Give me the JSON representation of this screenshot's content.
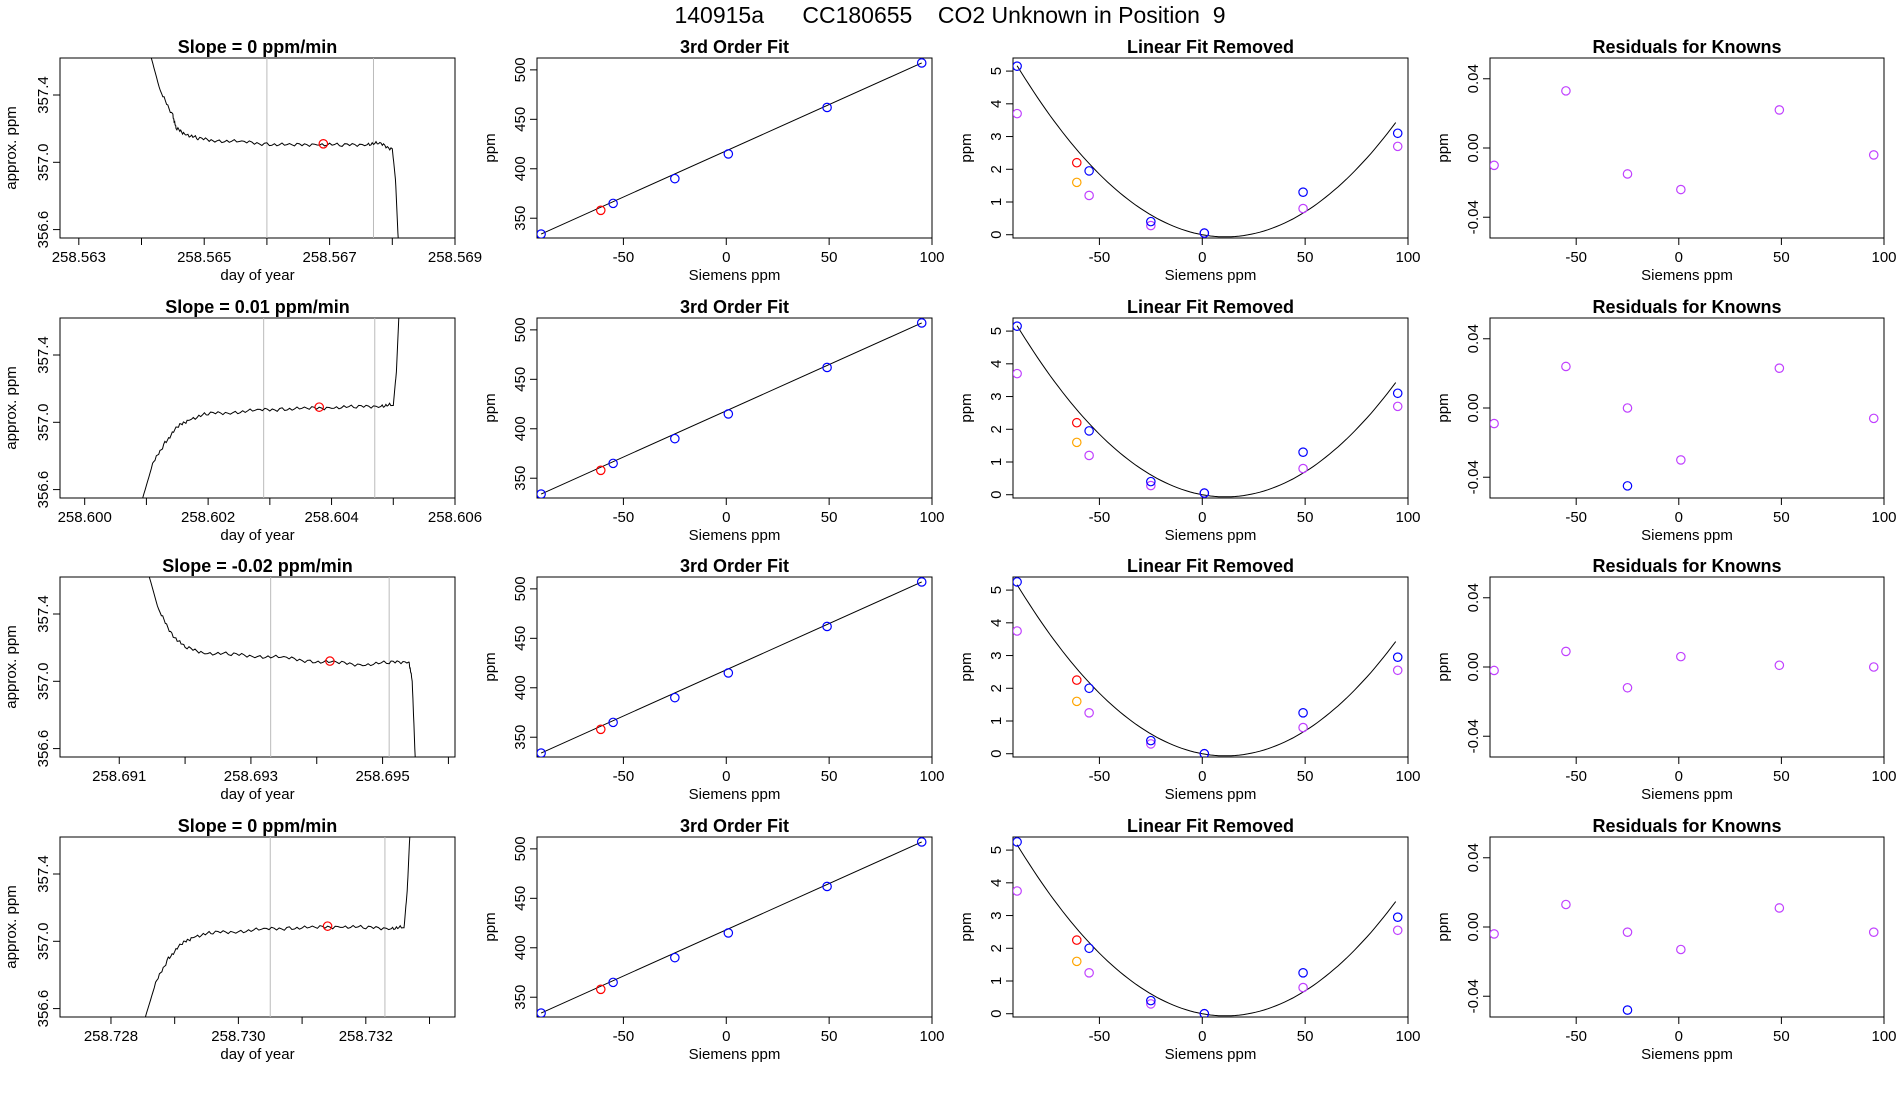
{
  "figure": {
    "title": "140915a      CC180655    CO2 Unknown in Position  9"
  },
  "colors": {
    "known": "#0000ff",
    "residual": "#c040ff",
    "unknown": "#ff0000",
    "unknown_lin": "#ffa500",
    "line": "#000000",
    "gridline": "#bbbbbb"
  },
  "chart_data": [
    {
      "row": 0,
      "panel": "trace",
      "type": "line",
      "title": "Slope =  0  ppm/min",
      "xlabel": "day of year",
      "ylabel": "approx. ppm",
      "xlim": [
        258.5627,
        258.569
      ],
      "ylim": [
        356.55,
        357.62
      ],
      "xticks": [
        258.563,
        258.564,
        258.565,
        258.566,
        258.567,
        258.568,
        258.569
      ],
      "xticklabels": [
        "258.563",
        "",
        "258.565",
        "",
        "258.567",
        "",
        "258.569"
      ],
      "yticks": [
        356.6,
        357.0,
        357.4
      ],
      "yticklabels": [
        "356.6",
        "357.0",
        "357.4"
      ],
      "vlines": [
        258.566,
        258.5677
      ],
      "line": {
        "x": [
          258.5641,
          258.5643,
          258.5645,
          258.56455,
          258.5647,
          258.5649,
          258.5652,
          258.5656,
          258.566,
          258.5664,
          258.5668,
          258.5672,
          258.5676,
          258.5678,
          258.568,
          258.56805,
          258.5681
        ],
        "y": [
          357.7,
          357.42,
          357.28,
          357.2,
          357.17,
          357.14,
          357.13,
          357.12,
          357.11,
          357.1,
          357.11,
          357.1,
          357.11,
          357.11,
          357.08,
          356.9,
          356.5
        ]
      },
      "point": {
        "x": 258.5669,
        "y": 357.11
      }
    },
    {
      "row": 0,
      "panel": "fit",
      "type": "scatter",
      "title": "3rd Order Fit",
      "xlabel": "Siemens ppm",
      "ylabel": "ppm",
      "xlim": [
        -92,
        100
      ],
      "ylim": [
        330,
        512
      ],
      "xticks": [
        -50,
        0,
        50,
        100
      ],
      "yticks": [
        350,
        400,
        450,
        500
      ],
      "knowns": {
        "x": [
          -90,
          -55,
          -25,
          1,
          49,
          95
        ],
        "y": [
          334,
          365,
          390,
          415,
          462,
          507
        ]
      },
      "unknown": {
        "x": [
          -61
        ],
        "y": [
          358
        ]
      },
      "curve": {
        "x": [
          -90,
          95
        ],
        "y": [
          334,
          507
        ]
      }
    },
    {
      "row": 0,
      "panel": "linfit",
      "type": "scatter",
      "title": "Linear Fit Removed",
      "xlabel": "Siemens ppm",
      "ylabel": "ppm",
      "xlim": [
        -92,
        100
      ],
      "ylim": [
        -0.1,
        5.4
      ],
      "xticks": [
        -50,
        0,
        50,
        100
      ],
      "yticks": [
        0,
        1,
        2,
        3,
        4,
        5
      ],
      "knowns": {
        "x": [
          -90,
          -55,
          -25,
          1,
          49,
          95
        ],
        "y": [
          5.15,
          1.95,
          0.4,
          0.05,
          1.3,
          3.1
        ]
      },
      "residuals": {
        "x": [
          -90,
          -55,
          -25,
          1,
          49,
          95
        ],
        "y": [
          3.7,
          1.2,
          0.28,
          0.05,
          0.8,
          2.7
        ]
      },
      "unknown": {
        "x": [
          -61
        ],
        "y": [
          2.2
        ]
      },
      "unknown_lin": {
        "x": [
          -61
        ],
        "y": [
          1.6
        ]
      },
      "curve_coef": [
        0.00051,
        -0.0115,
        0.0
      ]
    },
    {
      "row": 0,
      "panel": "residuals",
      "type": "scatter",
      "title": "Residuals for Knowns",
      "xlabel": "Siemens ppm",
      "ylabel": "ppm",
      "xlim": [
        -92,
        100
      ],
      "ylim": [
        -0.052,
        0.052
      ],
      "xticks": [
        -50,
        0,
        50,
        100
      ],
      "xticklabels": [
        "-50",
        "0",
        "50",
        "100"
      ],
      "yticks": [
        -0.04,
        0.0,
        0.04
      ],
      "yticklabels": [
        "-0.04",
        "0.00",
        "0.04"
      ],
      "residuals": {
        "x": [
          -90,
          -55,
          -25,
          1,
          49,
          95
        ],
        "y": [
          -0.01,
          0.033,
          -0.015,
          -0.024,
          0.022,
          -0.004
        ]
      }
    },
    {
      "row": 1,
      "panel": "trace",
      "type": "line",
      "title": "Slope =  0.01  ppm/min",
      "xlabel": "day of year",
      "ylabel": "approx. ppm",
      "xlim": [
        258.5996,
        258.606
      ],
      "ylim": [
        356.55,
        357.62
      ],
      "xticks": [
        258.6,
        258.601,
        258.602,
        258.603,
        258.604,
        258.605,
        258.606
      ],
      "xticklabels": [
        "258.600",
        "",
        "258.602",
        "",
        "258.604",
        "",
        "258.606"
      ],
      "yticks": [
        356.6,
        357.0,
        357.4
      ],
      "yticklabels": [
        "356.6",
        "357.0",
        "357.4"
      ],
      "vlines": [
        258.6029,
        258.6047
      ],
      "line": {
        "x": [
          258.6009,
          258.6011,
          258.6013,
          258.6015,
          258.6017,
          258.602,
          258.6024,
          258.6028,
          258.6032,
          258.6036,
          258.604,
          258.6044,
          258.6048,
          258.605,
          258.60505,
          258.6051
        ],
        "y": [
          356.5,
          356.75,
          356.88,
          356.97,
          357.02,
          357.05,
          357.06,
          357.07,
          357.08,
          357.08,
          357.09,
          357.09,
          357.1,
          357.1,
          357.3,
          357.7
        ]
      },
      "point": {
        "x": 258.6038,
        "y": 357.09
      }
    },
    {
      "row": 1,
      "panel": "fit",
      "type": "scatter",
      "title": "3rd Order Fit",
      "xlabel": "Siemens ppm",
      "ylabel": "ppm",
      "xlim": [
        -92,
        100
      ],
      "ylim": [
        330,
        512
      ],
      "xticks": [
        -50,
        0,
        50,
        100
      ],
      "yticks": [
        350,
        400,
        450,
        500
      ],
      "knowns": {
        "x": [
          -90,
          -55,
          -25,
          1,
          49,
          95
        ],
        "y": [
          334,
          365,
          390,
          415,
          462,
          507
        ]
      },
      "unknown": {
        "x": [
          -61
        ],
        "y": [
          358
        ]
      },
      "curve": {
        "x": [
          -90,
          95
        ],
        "y": [
          334,
          507
        ]
      }
    },
    {
      "row": 1,
      "panel": "linfit",
      "type": "scatter",
      "title": "Linear Fit Removed",
      "xlabel": "Siemens ppm",
      "ylabel": "ppm",
      "xlim": [
        -92,
        100
      ],
      "ylim": [
        -0.1,
        5.4
      ],
      "xticks": [
        -50,
        0,
        50,
        100
      ],
      "yticks": [
        0,
        1,
        2,
        3,
        4,
        5
      ],
      "knowns": {
        "x": [
          -90,
          -55,
          -25,
          1,
          49,
          95
        ],
        "y": [
          5.15,
          1.95,
          0.4,
          0.05,
          1.3,
          3.1
        ]
      },
      "residuals": {
        "x": [
          -90,
          -55,
          -25,
          1,
          49,
          95
        ],
        "y": [
          3.7,
          1.2,
          0.28,
          0.05,
          0.8,
          2.7
        ]
      },
      "unknown": {
        "x": [
          -61
        ],
        "y": [
          2.2
        ]
      },
      "unknown_lin": {
        "x": [
          -61
        ],
        "y": [
          1.6
        ]
      },
      "curve_coef": [
        0.00051,
        -0.0115,
        0.0
      ]
    },
    {
      "row": 1,
      "panel": "residuals",
      "type": "scatter",
      "title": "Residuals for Knowns",
      "xlabel": "Siemens ppm",
      "ylabel": "ppm",
      "xlim": [
        -92,
        100
      ],
      "ylim": [
        -0.052,
        0.052
      ],
      "xticks": [
        -50,
        0,
        50,
        100
      ],
      "xticklabels": [
        "-50",
        "0",
        "50",
        "100"
      ],
      "yticks": [
        -0.04,
        0.0,
        0.04
      ],
      "yticklabels": [
        "-0.04",
        "0.00",
        "0.04"
      ],
      "residuals": {
        "x": [
          -90,
          -55,
          -25,
          1,
          49,
          95
        ],
        "y": [
          -0.009,
          0.024,
          0.0,
          -0.03,
          0.023,
          -0.006
        ]
      },
      "knowns_low": {
        "x": [
          -25
        ],
        "y": [
          -0.045
        ]
      }
    },
    {
      "row": 2,
      "panel": "trace",
      "type": "line",
      "title": "Slope =  -0.02  ppm/min",
      "xlabel": "day of year",
      "ylabel": "approx. ppm",
      "xlim": [
        258.6901,
        258.6961
      ],
      "ylim": [
        356.55,
        357.62
      ],
      "xticks": [
        258.691,
        258.692,
        258.693,
        258.694,
        258.695,
        258.696
      ],
      "xticklabels": [
        "258.691",
        "",
        "258.693",
        "",
        "258.695",
        ""
      ],
      "yticks": [
        356.6,
        357.0,
        357.4
      ],
      "yticklabels": [
        "356.6",
        "357.0",
        "357.4"
      ],
      "vlines": [
        258.6933,
        258.6951
      ],
      "line": {
        "x": [
          258.6914,
          258.6916,
          258.6918,
          258.692,
          258.6923,
          258.6927,
          258.6931,
          258.6935,
          258.6939,
          258.6943,
          258.6947,
          258.6951,
          258.6954,
          258.69545,
          258.6955
        ],
        "y": [
          357.7,
          357.42,
          357.28,
          357.2,
          357.17,
          357.16,
          357.15,
          357.14,
          357.12,
          357.11,
          357.1,
          357.11,
          357.12,
          357.0,
          356.5
        ]
      },
      "point": {
        "x": 258.6942,
        "y": 357.12
      }
    },
    {
      "row": 2,
      "panel": "fit",
      "type": "scatter",
      "title": "3rd Order Fit",
      "xlabel": "Siemens ppm",
      "ylabel": "ppm",
      "xlim": [
        -92,
        100
      ],
      "ylim": [
        330,
        512
      ],
      "xticks": [
        -50,
        0,
        50,
        100
      ],
      "yticks": [
        350,
        400,
        450,
        500
      ],
      "knowns": {
        "x": [
          -90,
          -55,
          -25,
          1,
          49,
          95
        ],
        "y": [
          334,
          365,
          390,
          415,
          462,
          507
        ]
      },
      "unknown": {
        "x": [
          -61
        ],
        "y": [
          358
        ]
      },
      "curve": {
        "x": [
          -90,
          95
        ],
        "y": [
          334,
          507
        ]
      }
    },
    {
      "row": 2,
      "panel": "linfit",
      "type": "scatter",
      "title": "Linear Fit Removed",
      "xlabel": "Siemens ppm",
      "ylabel": "ppm",
      "xlim": [
        -92,
        100
      ],
      "ylim": [
        -0.1,
        5.4
      ],
      "xticks": [
        -50,
        0,
        50,
        100
      ],
      "yticks": [
        0,
        1,
        2,
        3,
        4,
        5
      ],
      "knowns": {
        "x": [
          -90,
          -55,
          -25,
          1,
          49,
          95
        ],
        "y": [
          5.25,
          2.0,
          0.4,
          0.0,
          1.25,
          2.95
        ]
      },
      "residuals": {
        "x": [
          -90,
          -55,
          -25,
          1,
          49,
          95
        ],
        "y": [
          3.75,
          1.25,
          0.3,
          0.0,
          0.8,
          2.55
        ]
      },
      "unknown": {
        "x": [
          -61
        ],
        "y": [
          2.25
        ]
      },
      "unknown_lin": {
        "x": [
          -61
        ],
        "y": [
          1.6
        ]
      },
      "curve_coef": [
        0.00051,
        -0.0115,
        0.0
      ]
    },
    {
      "row": 2,
      "panel": "residuals",
      "type": "scatter",
      "title": "Residuals for Knowns",
      "xlabel": "Siemens ppm",
      "ylabel": "ppm",
      "xlim": [
        -92,
        100
      ],
      "ylim": [
        -0.052,
        0.052
      ],
      "xticks": [
        -50,
        0,
        50,
        100
      ],
      "xticklabels": [
        "-50",
        "0",
        "50",
        "100"
      ],
      "yticks": [
        -0.04,
        0.0,
        0.04
      ],
      "yticklabels": [
        "-0.04",
        "0.00",
        "0.04"
      ],
      "residuals": {
        "x": [
          -90,
          -55,
          -25,
          1,
          49,
          95
        ],
        "y": [
          -0.002,
          0.009,
          -0.012,
          0.006,
          0.001,
          0.0
        ]
      }
    },
    {
      "row": 3,
      "panel": "trace",
      "type": "line",
      "title": "Slope =  0  ppm/min",
      "xlabel": "day of year",
      "ylabel": "approx. ppm",
      "xlim": [
        258.7272,
        258.7334
      ],
      "ylim": [
        356.55,
        357.62
      ],
      "xticks": [
        258.728,
        258.729,
        258.73,
        258.731,
        258.732,
        258.733
      ],
      "xticklabels": [
        "258.728",
        "",
        "258.730",
        "",
        "258.732",
        ""
      ],
      "yticks": [
        356.6,
        357.0,
        357.4
      ],
      "yticklabels": [
        "356.6",
        "357.0",
        "357.4"
      ],
      "vlines": [
        258.7305,
        258.7323
      ],
      "line": {
        "x": [
          258.7285,
          258.7287,
          258.7289,
          258.7291,
          258.7293,
          258.7296,
          258.73,
          258.7304,
          258.7308,
          258.7312,
          258.7316,
          258.732,
          258.7324,
          258.7326,
          258.73265,
          258.7327
        ],
        "y": [
          356.5,
          356.75,
          356.9,
          356.98,
          357.03,
          357.05,
          357.06,
          357.07,
          357.08,
          357.08,
          357.09,
          357.08,
          357.08,
          357.08,
          357.3,
          357.7
        ]
      },
      "point": {
        "x": 258.7314,
        "y": 357.09
      }
    },
    {
      "row": 3,
      "panel": "fit",
      "type": "scatter",
      "title": "3rd Order Fit",
      "xlabel": "Siemens ppm",
      "ylabel": "ppm",
      "xlim": [
        -92,
        100
      ],
      "ylim": [
        330,
        512
      ],
      "xticks": [
        -50,
        0,
        50,
        100
      ],
      "yticks": [
        350,
        400,
        450,
        500
      ],
      "knowns": {
        "x": [
          -90,
          -55,
          -25,
          1,
          49,
          95
        ],
        "y": [
          334,
          365,
          390,
          415,
          462,
          507
        ]
      },
      "unknown": {
        "x": [
          -61
        ],
        "y": [
          358
        ]
      },
      "curve": {
        "x": [
          -90,
          95
        ],
        "y": [
          334,
          507
        ]
      }
    },
    {
      "row": 3,
      "panel": "linfit",
      "type": "scatter",
      "title": "Linear Fit Removed",
      "xlabel": "Siemens ppm",
      "ylabel": "ppm",
      "xlim": [
        -92,
        100
      ],
      "ylim": [
        -0.1,
        5.4
      ],
      "xticks": [
        -50,
        0,
        50,
        100
      ],
      "yticks": [
        0,
        1,
        2,
        3,
        4,
        5
      ],
      "knowns": {
        "x": [
          -90,
          -55,
          -25,
          1,
          49,
          95
        ],
        "y": [
          5.25,
          2.0,
          0.4,
          0.0,
          1.25,
          2.95
        ]
      },
      "residuals": {
        "x": [
          -90,
          -55,
          -25,
          1,
          49,
          95
        ],
        "y": [
          3.75,
          1.25,
          0.3,
          0.0,
          0.8,
          2.55
        ]
      },
      "unknown": {
        "x": [
          -61
        ],
        "y": [
          2.25
        ]
      },
      "unknown_lin": {
        "x": [
          -61
        ],
        "y": [
          1.6
        ]
      },
      "curve_coef": [
        0.00051,
        -0.0115,
        0.0
      ]
    },
    {
      "row": 3,
      "panel": "residuals",
      "type": "scatter",
      "title": "Residuals for Knowns",
      "xlabel": "Siemens ppm",
      "ylabel": "ppm",
      "xlim": [
        -92,
        100
      ],
      "ylim": [
        -0.052,
        0.052
      ],
      "xticks": [
        -50,
        0,
        50,
        100
      ],
      "xticklabels": [
        "-50",
        "0",
        "50",
        "100"
      ],
      "yticks": [
        -0.04,
        0.0,
        0.04
      ],
      "yticklabels": [
        "-0.04",
        "0.00",
        "0.04"
      ],
      "residuals": {
        "x": [
          -90,
          -55,
          -25,
          1,
          49,
          95
        ],
        "y": [
          -0.004,
          0.013,
          -0.003,
          -0.013,
          0.011,
          -0.003
        ]
      },
      "knowns_low": {
        "x": [
          -25
        ],
        "y": [
          -0.048
        ]
      }
    }
  ]
}
